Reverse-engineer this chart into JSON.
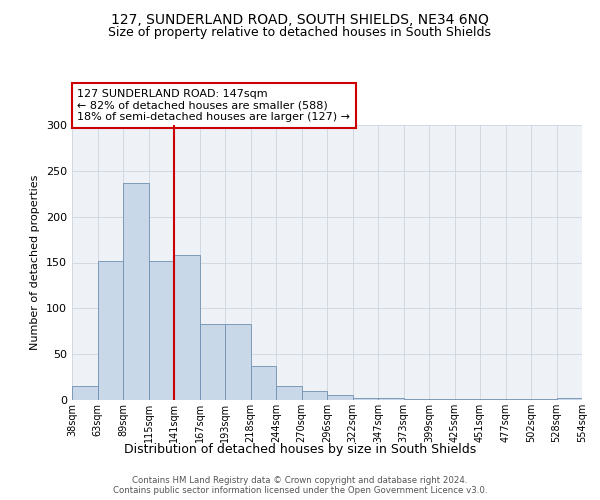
{
  "title": "127, SUNDERLAND ROAD, SOUTH SHIELDS, NE34 6NQ",
  "subtitle": "Size of property relative to detached houses in South Shields",
  "xlabel": "Distribution of detached houses by size in South Shields",
  "ylabel": "Number of detached properties",
  "bar_values": [
    15,
    152,
    237,
    152,
    158,
    83,
    83,
    37,
    15,
    10,
    5,
    2,
    2,
    1,
    1,
    1,
    1,
    1,
    1,
    2
  ],
  "bin_labels": [
    "38sqm",
    "63sqm",
    "89sqm",
    "115sqm",
    "141sqm",
    "167sqm",
    "193sqm",
    "218sqm",
    "244sqm",
    "270sqm",
    "296sqm",
    "322sqm",
    "347sqm",
    "373sqm",
    "399sqm",
    "425sqm",
    "451sqm",
    "477sqm",
    "502sqm",
    "528sqm",
    "554sqm"
  ],
  "bar_color": "#c8d8e8",
  "bar_edge_color": "#7090b0",
  "red_line_x": 4,
  "annotation_text1": "127 SUNDERLAND ROAD: 147sqm",
  "annotation_text2": "← 82% of detached houses are smaller (588)",
  "annotation_text3": "18% of semi-detached houses are larger (127) →",
  "footer_text": "Contains HM Land Registry data © Crown copyright and database right 2024.\nContains public sector information licensed under the Open Government Licence v3.0.",
  "ylim": [
    0,
    300
  ],
  "yticks": [
    0,
    50,
    100,
    150,
    200,
    250,
    300
  ],
  "background_color": "#eef2f7",
  "grid_color": "#ccd5e0"
}
